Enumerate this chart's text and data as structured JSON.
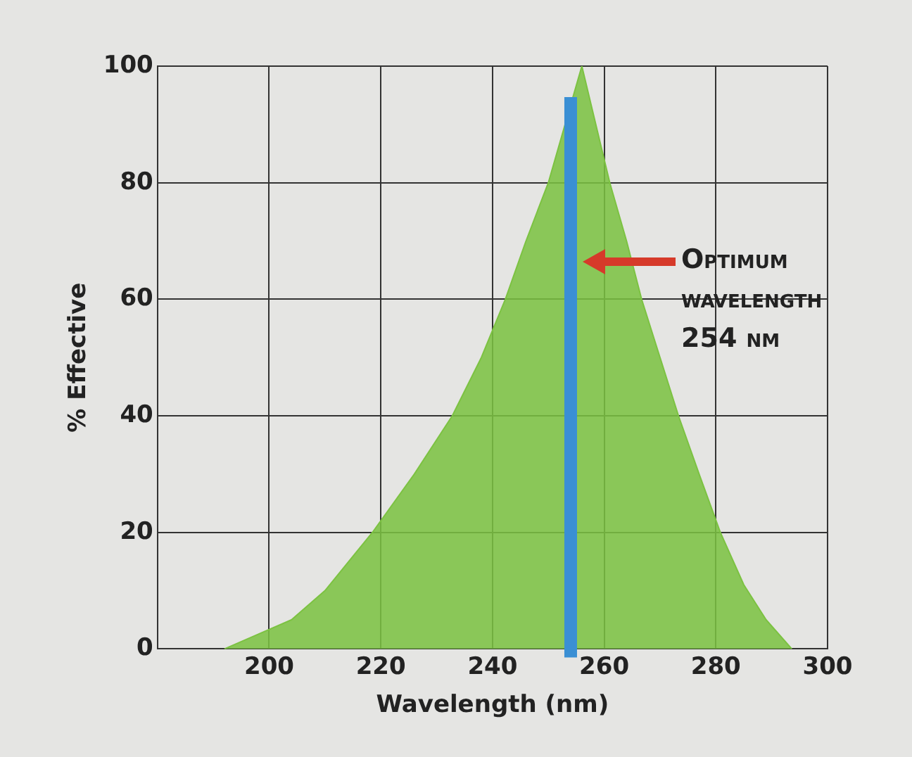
{
  "chart_data": {
    "type": "area",
    "xlabel": "Wavelength (nm)",
    "ylabel": "% Effective",
    "xlim": [
      180,
      300
    ],
    "xticks": [
      200,
      220,
      240,
      260,
      280,
      300
    ],
    "ylim": [
      0,
      100
    ],
    "yticks": [
      0,
      20,
      40,
      60,
      80,
      100
    ],
    "grid": true,
    "series": [
      {
        "color": "#7cc242",
        "x": [
          192,
          198,
          204,
          210,
          218.5,
          226,
          232.8,
          238,
          242.3,
          246,
          250,
          253,
          256,
          259,
          261,
          264,
          266.7,
          270,
          273.3,
          277,
          280.8,
          285,
          289,
          293.6
        ],
        "values": [
          0,
          2.5,
          5,
          10,
          20,
          30,
          40,
          50,
          60,
          70,
          80,
          90,
          100,
          88,
          80,
          70,
          60,
          50,
          40,
          30,
          20,
          11,
          5,
          0
        ]
      }
    ],
    "ref_lines": [
      {
        "axis": "x",
        "value": 254,
        "color": "#3a8fd4"
      }
    ],
    "annotations": [
      "Optimum wavelength 254 nm"
    ]
  }
}
